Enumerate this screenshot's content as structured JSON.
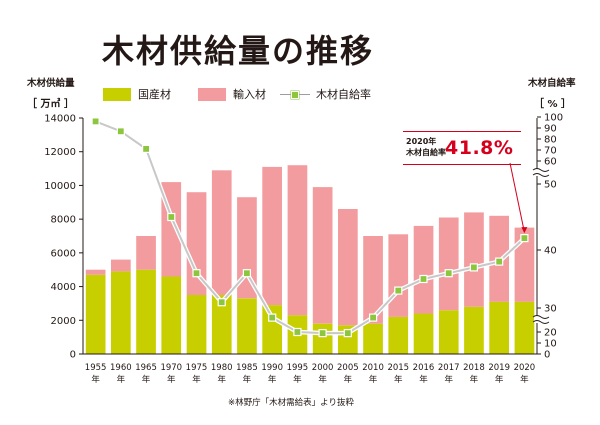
{
  "title": "木材供給量の推移",
  "left_axis_title": "木材供給量",
  "left_unit": "［ 万㎥ ］",
  "right_axis_title": "木材自給率",
  "right_unit": "［ % ］",
  "source_note": "※林野庁「木材需給表」より抜粋",
  "callout": {
    "label_line1": "2020年",
    "label_line2": "木材自給率",
    "value": "41.8%"
  },
  "chart_data": {
    "type": "bar",
    "stacked": true,
    "title": "木材供給量の推移",
    "categories": [
      "1955",
      "1960",
      "1965",
      "1970",
      "1975",
      "1980",
      "1985",
      "1990",
      "1995",
      "2000",
      "2005",
      "2010",
      "2015",
      "2016",
      "2017",
      "2018",
      "2019",
      "2020"
    ],
    "category_suffix": "年",
    "series": [
      {
        "name": "国産材",
        "color": "#c8cf00",
        "values": [
          4700,
          4900,
          5000,
          4600,
          3500,
          3500,
          3300,
          2900,
          2300,
          1800,
          1700,
          1800,
          2200,
          2400,
          2600,
          2800,
          3100,
          3100
        ]
      },
      {
        "name": "輸入材",
        "color": "#f29c9f",
        "values": [
          300,
          700,
          2000,
          5600,
          6100,
          7400,
          6000,
          8200,
          8900,
          8100,
          6900,
          5200,
          4900,
          5200,
          5500,
          5600,
          5100,
          4400
        ]
      }
    ],
    "line_series": {
      "name": "木材自給率",
      "color": "#8cc63f",
      "line_color": "#c8c8c8",
      "values": [
        96,
        87,
        71,
        45,
        36,
        31,
        36,
        26,
        20,
        19,
        19,
        26,
        33,
        35,
        36,
        37,
        38,
        41.8
      ]
    },
    "y_left": {
      "ylim": [
        0,
        14000
      ],
      "ticks": [
        0,
        2000,
        4000,
        6000,
        8000,
        10000,
        12000,
        14000
      ]
    },
    "y_right": {
      "ticks": [
        "0",
        "10",
        "20",
        "30",
        "40",
        "50",
        "60",
        "70",
        "80",
        "90",
        "100"
      ],
      "broken": true
    },
    "grid": false,
    "legend": "top"
  }
}
